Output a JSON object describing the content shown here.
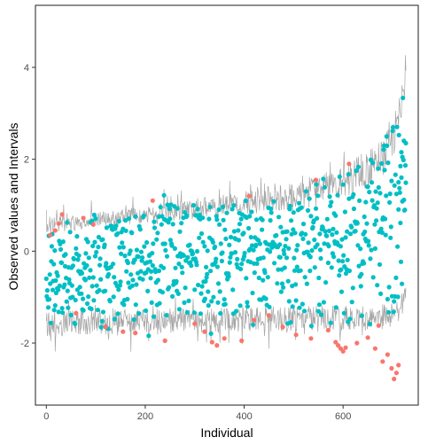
{
  "chart_data": {
    "type": "scatter",
    "title": "",
    "xlabel": "Individual",
    "ylabel": "Observed values and Intervals",
    "xlim": [
      -22,
      752
    ],
    "ylim": [
      -3.35,
      5.35
    ],
    "xticks": [
      0,
      200,
      400,
      600
    ],
    "yticks": [
      -2,
      0,
      2,
      4
    ],
    "grid": false,
    "legend": "none",
    "n_individuals": 728,
    "colors": {
      "inside": "#00BFC4",
      "outside": "#F8766D",
      "interval": "#A6A6A6",
      "frame": "#333333"
    },
    "interval_bounds_sampled": {
      "x": [
        0,
        50,
        100,
        150,
        200,
        250,
        300,
        350,
        400,
        450,
        500,
        550,
        600,
        650,
        680,
        700,
        715,
        725
      ],
      "upper": [
        0.55,
        0.62,
        0.68,
        0.74,
        0.8,
        0.86,
        0.92,
        0.98,
        1.04,
        1.12,
        1.2,
        1.32,
        1.5,
        1.78,
        2.05,
        2.4,
        3.0,
        3.85
      ],
      "lower": [
        -1.6,
        -1.55,
        -1.55,
        -1.55,
        -1.52,
        -1.5,
        -1.5,
        -1.5,
        -1.48,
        -1.48,
        -1.48,
        -1.45,
        -1.45,
        -1.45,
        -1.42,
        -1.42,
        -1.3,
        -0.75
      ]
    },
    "outside_points": [
      {
        "x": 8,
        "y": 0.35
      },
      {
        "x": 18,
        "y": 0.45
      },
      {
        "x": 25,
        "y": 0.6
      },
      {
        "x": 32,
        "y": 0.8
      },
      {
        "x": 60,
        "y": -1.35
      },
      {
        "x": 75,
        "y": 0.72
      },
      {
        "x": 95,
        "y": 0.58
      },
      {
        "x": 120,
        "y": -1.65
      },
      {
        "x": 155,
        "y": -1.75
      },
      {
        "x": 180,
        "y": -1.78
      },
      {
        "x": 215,
        "y": 1.1
      },
      {
        "x": 240,
        "y": -1.95
      },
      {
        "x": 300,
        "y": -1.58
      },
      {
        "x": 320,
        "y": -1.75
      },
      {
        "x": 335,
        "y": -1.98
      },
      {
        "x": 345,
        "y": -2.05
      },
      {
        "x": 360,
        "y": -1.9
      },
      {
        "x": 395,
        "y": -1.95
      },
      {
        "x": 410,
        "y": 1.2
      },
      {
        "x": 420,
        "y": -1.5
      },
      {
        "x": 450,
        "y": -1.4
      },
      {
        "x": 478,
        "y": -1.65
      },
      {
        "x": 505,
        "y": -1.82
      },
      {
        "x": 535,
        "y": -1.9
      },
      {
        "x": 545,
        "y": 1.55
      },
      {
        "x": 570,
        "y": -1.72
      },
      {
        "x": 585,
        "y": -1.98
      },
      {
        "x": 590,
        "y": -2.05
      },
      {
        "x": 595,
        "y": -2.12
      },
      {
        "x": 600,
        "y": -2.18
      },
      {
        "x": 605,
        "y": -2.1
      },
      {
        "x": 612,
        "y": 1.9
      },
      {
        "x": 628,
        "y": -2.0
      },
      {
        "x": 650,
        "y": -1.88
      },
      {
        "x": 665,
        "y": -2.12
      },
      {
        "x": 672,
        "y": -1.62
      },
      {
        "x": 680,
        "y": -2.4
      },
      {
        "x": 690,
        "y": -2.25
      },
      {
        "x": 698,
        "y": -2.55
      },
      {
        "x": 703,
        "y": -2.78
      },
      {
        "x": 708,
        "y": -2.65
      },
      {
        "x": 712,
        "y": -2.48
      }
    ]
  }
}
